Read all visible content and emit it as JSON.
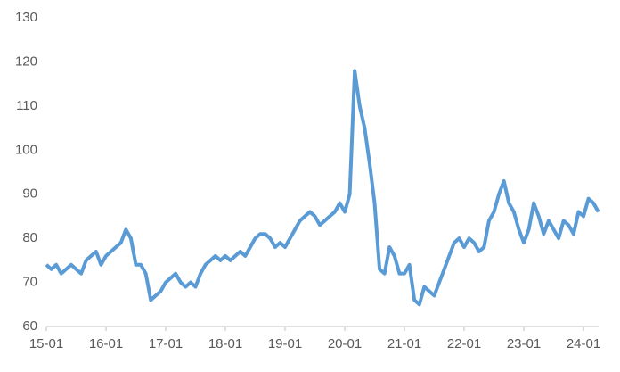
{
  "chart_data": {
    "type": "line",
    "categories": [
      "15-01",
      null,
      null,
      null,
      null,
      null,
      null,
      null,
      null,
      null,
      null,
      null,
      "16-01",
      null,
      null,
      null,
      null,
      null,
      null,
      null,
      null,
      null,
      null,
      null,
      "17-01",
      null,
      null,
      null,
      null,
      null,
      null,
      null,
      null,
      null,
      null,
      null,
      "18-01",
      null,
      null,
      null,
      null,
      null,
      null,
      null,
      null,
      null,
      null,
      null,
      "19-01",
      null,
      null,
      null,
      null,
      null,
      null,
      null,
      null,
      null,
      null,
      null,
      "20-01",
      null,
      null,
      null,
      null,
      null,
      null,
      null,
      null,
      null,
      null,
      null,
      "21-01",
      null,
      null,
      null,
      null,
      null,
      null,
      null,
      null,
      null,
      null,
      null,
      "22-01",
      null,
      null,
      null,
      null,
      null,
      null,
      null,
      null,
      null,
      null,
      null,
      "23-01",
      null,
      null,
      null,
      null,
      null,
      null,
      null,
      null,
      null,
      null,
      null,
      "24-01",
      null,
      null,
      null
    ],
    "series": [
      {
        "color": "#5b9bd5",
        "values": [
          74,
          73,
          74,
          72,
          73,
          74,
          73,
          72,
          75,
          76,
          77,
          74,
          76,
          77,
          78,
          79,
          82,
          80,
          74,
          74,
          72,
          66,
          67,
          68,
          70,
          71,
          72,
          70,
          69,
          70,
          69,
          72,
          74,
          75,
          76,
          75,
          76,
          75,
          76,
          77,
          76,
          78,
          80,
          81,
          81,
          80,
          78,
          79,
          78,
          80,
          82,
          84,
          85,
          86,
          85,
          83,
          84,
          85,
          86,
          88,
          86,
          90,
          118,
          110,
          105,
          97,
          88,
          73,
          72,
          78,
          76,
          72,
          72,
          74,
          66,
          65,
          69,
          68,
          67,
          70,
          73,
          76,
          79,
          80,
          78,
          80,
          79,
          77,
          78,
          84,
          86,
          90,
          93,
          88,
          86,
          82,
          79,
          82,
          88,
          85,
          81,
          84,
          82,
          80,
          84,
          83,
          81,
          86,
          85,
          89,
          88,
          86
        ]
      }
    ],
    "ylim": [
      60,
      130
    ],
    "yticks": [
      60,
      70,
      80,
      90,
      100,
      110,
      120,
      130
    ],
    "grid": false
  }
}
